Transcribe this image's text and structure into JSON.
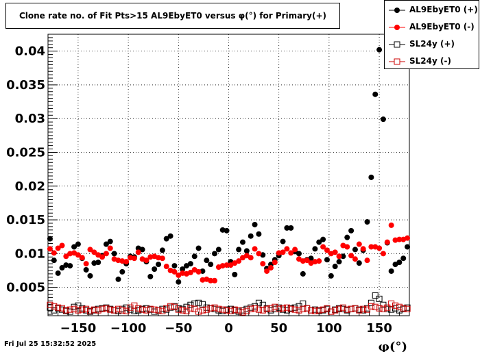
{
  "chart_data": {
    "type": "scatter",
    "title": "Clone rate no. of Fit Pts>15 AL9EbyET0 versus φ(°) for Primary(+)",
    "xlabel": "φ(°)",
    "ylabel": "",
    "xlim": [
      -180,
      180
    ],
    "ylim": [
      0.0008,
      0.0425
    ],
    "xticks": [
      -150,
      -100,
      -50,
      0,
      50,
      100,
      150
    ],
    "xtick_labels": [
      "−150",
      "−100",
      "−50",
      "0",
      "50",
      "100",
      "150"
    ],
    "yticks": [
      0.005,
      0.01,
      0.015,
      0.02,
      0.025,
      0.03,
      0.035,
      0.04
    ],
    "ytick_labels": [
      "0.005",
      "0.01",
      "0.015",
      "0.02",
      "0.025",
      "0.03",
      "0.035",
      "0.04"
    ],
    "grid": true,
    "legend_position": "top-right",
    "series": [
      {
        "name": "AL9EbyET0 (+)",
        "color": "#000000",
        "marker": "filled-circle",
        "x": [
          -178,
          -174,
          -170,
          -166,
          -162,
          -158,
          -154,
          -150,
          -146,
          -142,
          -138,
          -134,
          -130,
          -126,
          -122,
          -118,
          -114,
          -110,
          -106,
          -102,
          -98,
          -94,
          -90,
          -86,
          -82,
          -78,
          -74,
          -70,
          -66,
          -62,
          -58,
          -54,
          -50,
          -46,
          -42,
          -38,
          -34,
          -30,
          -26,
          -22,
          -18,
          -14,
          -10,
          -6,
          -2,
          2,
          6,
          10,
          14,
          18,
          22,
          26,
          30,
          34,
          38,
          42,
          46,
          50,
          54,
          58,
          62,
          66,
          70,
          74,
          78,
          82,
          86,
          90,
          94,
          98,
          102,
          106,
          110,
          114,
          118,
          122,
          126,
          130,
          134,
          138,
          142,
          146,
          150,
          154,
          158,
          162,
          166,
          170,
          174,
          178
        ],
        "y": [
          0.0122,
          0.009,
          0.0071,
          0.0079,
          0.0083,
          0.0082,
          0.011,
          0.0114,
          0.0093,
          0.0076,
          0.0067,
          0.0086,
          0.0087,
          0.0097,
          0.0114,
          0.0118,
          0.01,
          0.0062,
          0.0073,
          0.0085,
          0.0096,
          0.0095,
          0.0108,
          0.0106,
          0.0088,
          0.0066,
          0.0077,
          0.0084,
          0.0105,
          0.0122,
          0.0126,
          0.0082,
          0.0058,
          0.0077,
          0.0082,
          0.0085,
          0.0096,
          0.0108,
          0.0074,
          0.009,
          0.0084,
          0.01,
          0.0106,
          0.0135,
          0.0134,
          0.0088,
          0.0069,
          0.0106,
          0.0117,
          0.0104,
          0.0126,
          0.0143,
          0.0129,
          0.0098,
          0.0078,
          0.0084,
          0.0091,
          0.0097,
          0.0118,
          0.0138,
          0.0138,
          0.0103,
          0.01,
          0.007,
          0.0091,
          0.0093,
          0.0107,
          0.0117,
          0.0121,
          0.0091,
          0.0067,
          0.0081,
          0.0088,
          0.0096,
          0.0124,
          0.0134,
          0.0106,
          0.0086,
          0.0105,
          0.0147,
          0.0213,
          0.0336,
          0.0402,
          0.0299,
          0.0116,
          0.0074,
          0.0084,
          0.0087,
          0.0093,
          0.011
        ]
      },
      {
        "name": "AL9EbyET0 (-)",
        "color": "#ff0000",
        "marker": "filled-circle",
        "x": [
          -178,
          -174,
          -170,
          -166,
          -162,
          -158,
          -154,
          -150,
          -146,
          -142,
          -138,
          -134,
          -130,
          -126,
          -122,
          -118,
          -114,
          -110,
          -106,
          -102,
          -98,
          -94,
          -90,
          -86,
          -82,
          -78,
          -74,
          -70,
          -66,
          -62,
          -58,
          -54,
          -50,
          -46,
          -42,
          -38,
          -34,
          -30,
          -26,
          -22,
          -18,
          -14,
          -10,
          -6,
          -2,
          2,
          6,
          10,
          14,
          18,
          22,
          26,
          30,
          34,
          38,
          42,
          46,
          50,
          54,
          58,
          62,
          66,
          70,
          74,
          78,
          82,
          86,
          90,
          94,
          98,
          102,
          106,
          110,
          114,
          118,
          122,
          126,
          130,
          134,
          138,
          142,
          146,
          150,
          154,
          158,
          162,
          166,
          170,
          174,
          178
        ],
        "y": [
          0.0107,
          0.0101,
          0.0108,
          0.0112,
          0.0096,
          0.01,
          0.0101,
          0.0098,
          0.0094,
          0.0085,
          0.0106,
          0.0102,
          0.0098,
          0.0095,
          0.01,
          0.0108,
          0.0092,
          0.009,
          0.0089,
          0.0088,
          0.0094,
          0.0093,
          0.0102,
          0.0092,
          0.009,
          0.0095,
          0.0096,
          0.0094,
          0.0093,
          0.0081,
          0.0075,
          0.0073,
          0.0068,
          0.0071,
          0.007,
          0.0072,
          0.0076,
          0.0073,
          0.0061,
          0.0062,
          0.006,
          0.006,
          0.008,
          0.0082,
          0.0083,
          0.0083,
          0.0086,
          0.0089,
          0.0094,
          0.0097,
          0.0094,
          0.0107,
          0.01,
          0.0085,
          0.0074,
          0.0079,
          0.0087,
          0.0101,
          0.0102,
          0.0107,
          0.0101,
          0.0106,
          0.0092,
          0.0089,
          0.009,
          0.0086,
          0.0088,
          0.0089,
          0.011,
          0.0105,
          0.01,
          0.0102,
          0.0096,
          0.0112,
          0.011,
          0.0097,
          0.0092,
          0.0114,
          0.0107,
          0.009,
          0.011,
          0.011,
          0.0108,
          0.01,
          0.0117,
          0.0142,
          0.012,
          0.0121,
          0.0121,
          0.0123
        ]
      },
      {
        "name": "SL24y (+)",
        "color": "#000000",
        "marker": "open-square",
        "x": [
          -178,
          -174,
          -170,
          -166,
          -162,
          -158,
          -154,
          -150,
          -146,
          -142,
          -138,
          -134,
          -130,
          -126,
          -122,
          -118,
          -114,
          -110,
          -106,
          -102,
          -98,
          -94,
          -90,
          -86,
          -82,
          -78,
          -74,
          -70,
          -66,
          -62,
          -58,
          -54,
          -50,
          -46,
          -42,
          -38,
          -34,
          -30,
          -26,
          -22,
          -18,
          -14,
          -10,
          -6,
          -2,
          2,
          6,
          10,
          14,
          18,
          22,
          26,
          30,
          34,
          38,
          42,
          46,
          50,
          54,
          58,
          62,
          66,
          70,
          74,
          78,
          82,
          86,
          90,
          94,
          98,
          102,
          106,
          110,
          114,
          118,
          122,
          126,
          130,
          134,
          138,
          142,
          146,
          150,
          154,
          158,
          162,
          166,
          170,
          174,
          178
        ],
        "y": [
          0.002,
          0.0016,
          0.0019,
          0.0017,
          0.0015,
          0.0014,
          0.0021,
          0.0023,
          0.0019,
          0.0016,
          0.0014,
          0.0016,
          0.0018,
          0.0019,
          0.002,
          0.0018,
          0.0016,
          0.0015,
          0.0018,
          0.002,
          0.0017,
          0.0015,
          0.0016,
          0.0018,
          0.0019,
          0.0017,
          0.0014,
          0.0016,
          0.0018,
          0.0017,
          0.002,
          0.0022,
          0.0019,
          0.0018,
          0.0021,
          0.0024,
          0.0026,
          0.0027,
          0.0025,
          0.002,
          0.0019,
          0.0018,
          0.0016,
          0.0015,
          0.0017,
          0.0018,
          0.0016,
          0.0014,
          0.0016,
          0.0018,
          0.002,
          0.0022,
          0.0027,
          0.0024,
          0.0019,
          0.0016,
          0.0018,
          0.002,
          0.0017,
          0.0016,
          0.0019,
          0.002,
          0.0022,
          0.0026,
          0.0019,
          0.0016,
          0.0017,
          0.0015,
          0.0016,
          0.0018,
          0.0014,
          0.0017,
          0.0019,
          0.0018,
          0.0016,
          0.0018,
          0.0019,
          0.0017,
          0.0016,
          0.0019,
          0.0027,
          0.0038,
          0.0033,
          0.0024,
          0.0018,
          0.0017,
          0.0019,
          0.0016,
          0.0018,
          0.002
        ]
      },
      {
        "name": "SL24y (-)",
        "color": "#cc0000",
        "marker": "open-square",
        "x": [
          -178,
          -174,
          -170,
          -166,
          -162,
          -158,
          -154,
          -150,
          -146,
          -142,
          -138,
          -134,
          -130,
          -126,
          -122,
          -118,
          -114,
          -110,
          -106,
          -102,
          -98,
          -94,
          -90,
          -86,
          -82,
          -78,
          -74,
          -70,
          -66,
          -62,
          -58,
          -54,
          -50,
          -46,
          -42,
          -38,
          -34,
          -30,
          -26,
          -22,
          -18,
          -14,
          -10,
          -6,
          -2,
          2,
          6,
          10,
          14,
          18,
          22,
          26,
          30,
          34,
          38,
          42,
          46,
          50,
          54,
          58,
          62,
          66,
          70,
          74,
          78,
          82,
          86,
          90,
          94,
          98,
          102,
          106,
          110,
          114,
          118,
          122,
          126,
          130,
          134,
          138,
          142,
          146,
          150,
          154,
          158,
          162,
          166,
          170,
          174,
          178
        ],
        "y": [
          0.0024,
          0.0022,
          0.002,
          0.0019,
          0.0016,
          0.0017,
          0.0018,
          0.0016,
          0.0017,
          0.0018,
          0.0015,
          0.0017,
          0.0016,
          0.0018,
          0.0019,
          0.0017,
          0.0016,
          0.0018,
          0.0016,
          0.0015,
          0.002,
          0.0023,
          0.0019,
          0.0017,
          0.0016,
          0.0018,
          0.0017,
          0.0016,
          0.0015,
          0.0019,
          0.0022,
          0.0021,
          0.0017,
          0.0016,
          0.0015,
          0.0019,
          0.0018,
          0.0014,
          0.0016,
          0.0017,
          0.0019,
          0.002,
          0.0018,
          0.0017,
          0.0016,
          0.0015,
          0.0017,
          0.0016,
          0.0013,
          0.0015,
          0.0018,
          0.0019,
          0.0017,
          0.0016,
          0.0018,
          0.0019,
          0.0021,
          0.0018,
          0.0019,
          0.002,
          0.0018,
          0.0017,
          0.0016,
          0.0018,
          0.0019,
          0.0016,
          0.0015,
          0.0016,
          0.0017,
          0.0019,
          0.0014,
          0.0016,
          0.0018,
          0.002,
          0.0017,
          0.0018,
          0.0019,
          0.0016,
          0.0018,
          0.0017,
          0.0022,
          0.0021,
          0.0019,
          0.0018,
          0.002,
          0.0026,
          0.0023,
          0.0021,
          0.0019,
          0.0018
        ]
      }
    ]
  },
  "footer": {
    "date": "Fri Jul 25 15:32:52 2025"
  }
}
